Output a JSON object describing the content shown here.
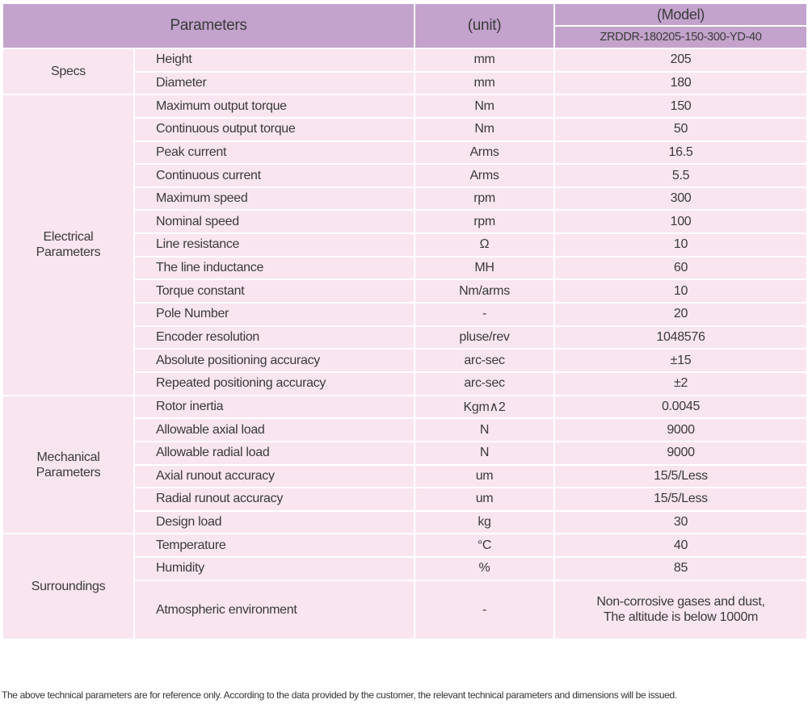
{
  "header": {
    "parameters": "Parameters",
    "unit": "(unit)",
    "model_label": "(Model)",
    "model_name": "ZRDDR-180205-150-300-YD-40"
  },
  "colors": {
    "header_bg": "#c3a3cc",
    "body_bg": "#f8e5ef",
    "border": "#ffffff"
  },
  "groups": [
    {
      "name": "Specs",
      "rows": [
        {
          "param": "Height",
          "unit": "mm",
          "value": "205"
        },
        {
          "param": "Diameter",
          "unit": "mm",
          "value": "180"
        }
      ]
    },
    {
      "name": "Electrical Parameters",
      "rows": [
        {
          "param": "Maximum output torque",
          "unit": "Nm",
          "value": "150"
        },
        {
          "param": "Continuous output torque",
          "unit": "Nm",
          "value": "50"
        },
        {
          "param": "Peak current",
          "unit": "Arms",
          "value": "16.5"
        },
        {
          "param": "Continuous current",
          "unit": "Arms",
          "value": "5.5"
        },
        {
          "param": "Maximum speed",
          "unit": "rpm",
          "value": "300"
        },
        {
          "param": "Nominal speed",
          "unit": "rpm",
          "value": "100"
        },
        {
          "param": "Line resistance",
          "unit": "Ω",
          "value": "10"
        },
        {
          "param": "The line inductance",
          "unit": "MH",
          "value": "60"
        },
        {
          "param": "Torque constant",
          "unit": "Nm/arms",
          "value": "10"
        },
        {
          "param": "Pole Number",
          "unit": "-",
          "value": "20"
        },
        {
          "param": "Encoder resolution",
          "unit": "pluse/rev",
          "value": "1048576"
        },
        {
          "param": "Absolute positioning accuracy",
          "unit": "arc-sec",
          "value": "±15"
        },
        {
          "param": "Repeated positioning accuracy",
          "unit": "arc-sec",
          "value": "±2"
        }
      ]
    },
    {
      "name": "Mechanical Parameters",
      "rows": [
        {
          "param": "Rotor inertia",
          "unit": "Kgm∧2",
          "value": "0.0045"
        },
        {
          "param": "Allowable axial load",
          "unit": "N",
          "value": "9000"
        },
        {
          "param": "Allowable radial load",
          "unit": "N",
          "value": "9000"
        },
        {
          "param": "Axial runout accuracy",
          "unit": "um",
          "value": "15/5/Less"
        },
        {
          "param": "Radial runout accuracy",
          "unit": "um",
          "value": "15/5/Less"
        },
        {
          "param": "Design load",
          "unit": "kg",
          "value": "30"
        }
      ]
    },
    {
      "name": "Surroundings",
      "rows": [
        {
          "param": "Temperature",
          "unit": "°C",
          "value": "40"
        },
        {
          "param": "Humidity",
          "unit": "%",
          "value": "85"
        },
        {
          "param": "Atmospheric environment",
          "unit": "-",
          "value": "Non-corrosive gases and dust,",
          "value2": "The altitude is below 1000m"
        }
      ]
    }
  ],
  "footer": "The above technical parameters are for reference only. According to the data provided by the customer, the relevant technical parameters and dimensions will be issued."
}
